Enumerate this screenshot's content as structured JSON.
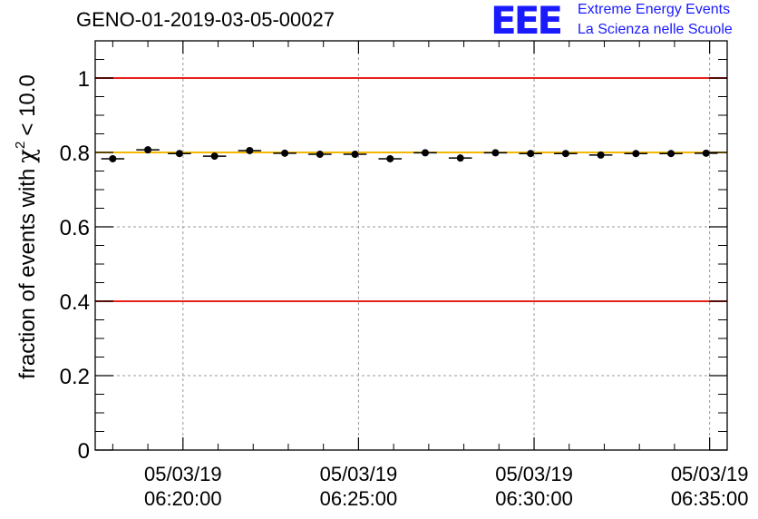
{
  "header": {
    "title": "GENO-01-2019-03-05-00027",
    "logo_text": "EEE",
    "logo_line1": "Extreme Energy Events",
    "logo_line2": "La Scienza nelle Scuole",
    "logo_color": "#1a1aff"
  },
  "chart_data": {
    "type": "scatter",
    "title": "GENO-01-2019-03-05-00027",
    "ylabel_prefix": "fraction of events with",
    "ylabel_symbol": "χ",
    "ylabel_power": "2",
    "ylabel_suffix": "< 10.0",
    "xlabel": "",
    "ylim": [
      0,
      1.1
    ],
    "y_ticks": [
      {
        "value": 0,
        "label": "0"
      },
      {
        "value": 0.2,
        "label": "0.2"
      },
      {
        "value": 0.4,
        "label": "0.4"
      },
      {
        "value": 0.6,
        "label": "0.6"
      },
      {
        "value": 0.8,
        "label": "0.8"
      },
      {
        "value": 1,
        "label": "1"
      }
    ],
    "x_range_min": [
      17.5,
      35.5
    ],
    "x_ticks": [
      {
        "value": 20,
        "date": "05/03/19",
        "time": "06:20:00"
      },
      {
        "value": 25,
        "date": "05/03/19",
        "time": "06:25:00"
      },
      {
        "value": 30,
        "date": "05/03/19",
        "time": "06:30:00"
      },
      {
        "value": 35,
        "date": "05/03/19",
        "time": "06:35:00"
      }
    ],
    "grid": true,
    "reference_lines": [
      {
        "y": 1.0,
        "color": "#e8211a"
      },
      {
        "y": 0.4,
        "color": "#e8211a"
      },
      {
        "y": 0.8,
        "color": "#f5b800"
      }
    ],
    "series": [
      {
        "points": [
          {
            "x": 18.0,
            "y": 0.783,
            "xerr": 0.33
          },
          {
            "x": 19.0,
            "y": 0.807,
            "xerr": 0.33
          },
          {
            "x": 19.9,
            "y": 0.797,
            "xerr": 0.33
          },
          {
            "x": 20.9,
            "y": 0.79,
            "xerr": 0.33
          },
          {
            "x": 21.9,
            "y": 0.805,
            "xerr": 0.33
          },
          {
            "x": 22.9,
            "y": 0.798,
            "xerr": 0.33
          },
          {
            "x": 23.9,
            "y": 0.795,
            "xerr": 0.33
          },
          {
            "x": 24.9,
            "y": 0.795,
            "xerr": 0.33
          },
          {
            "x": 25.9,
            "y": 0.783,
            "xerr": 0.33
          },
          {
            "x": 26.9,
            "y": 0.799,
            "xerr": 0.33
          },
          {
            "x": 27.9,
            "y": 0.785,
            "xerr": 0.33
          },
          {
            "x": 28.9,
            "y": 0.799,
            "xerr": 0.33
          },
          {
            "x": 29.9,
            "y": 0.797,
            "xerr": 0.33
          },
          {
            "x": 30.9,
            "y": 0.797,
            "xerr": 0.33
          },
          {
            "x": 31.9,
            "y": 0.793,
            "xerr": 0.33
          },
          {
            "x": 32.9,
            "y": 0.797,
            "xerr": 0.33
          },
          {
            "x": 33.9,
            "y": 0.797,
            "xerr": 0.33
          },
          {
            "x": 34.9,
            "y": 0.798,
            "xerr": 0.33
          }
        ]
      }
    ]
  }
}
